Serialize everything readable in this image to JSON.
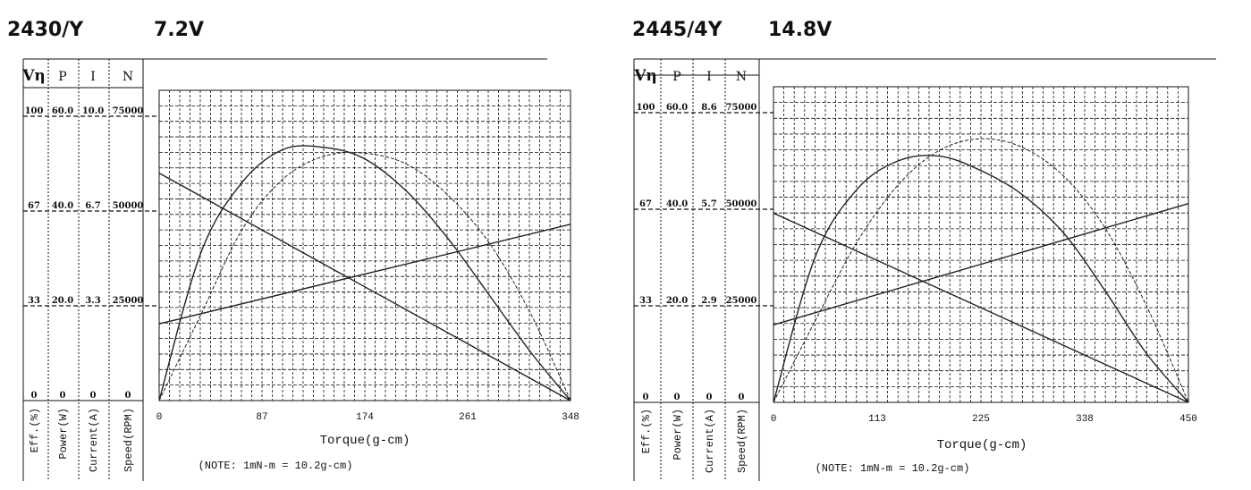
{
  "chart_data": [
    {
      "type": "line",
      "model": "2430/Y",
      "voltage": "7.2V",
      "title": "",
      "xlabel": "Torque(g-cm)",
      "note": "(NOTE: 1mN-m = 10.2g-cm)",
      "xlim": [
        0,
        348
      ],
      "x_ticks": [
        "0",
        "87",
        "174",
        "261",
        "348"
      ],
      "left_headers": [
        "Vη",
        "P",
        "I",
        "N"
      ],
      "left_scales": {
        "eff": [
          "0",
          "33",
          "67",
          "100"
        ],
        "power": [
          "0",
          "20.0",
          "40.0",
          "60.0"
        ],
        "current": [
          "0",
          "3.3",
          "6.7",
          "10.0"
        ],
        "speed": [
          "0",
          "25000",
          "50000",
          "75000"
        ]
      },
      "axis_names": [
        "Eff.(%)",
        "Power(W)",
        "Current(A)",
        "Speed(RPM)"
      ],
      "series": [
        {
          "role": "speed",
          "unit": "RPM",
          "style": "solid",
          "x": [
            0,
            348
          ],
          "values": [
            60000,
            0
          ]
        },
        {
          "role": "current",
          "unit": "A",
          "style": "solid",
          "x": [
            0,
            348
          ],
          "values": [
            2.7,
            6.2
          ]
        },
        {
          "role": "power",
          "unit": "W",
          "style": "solid",
          "x": [
            0,
            35,
            70,
            105,
            140,
            174,
            210,
            245,
            280,
            315,
            348
          ],
          "values": [
            0,
            31,
            46,
            53,
            53.4,
            51,
            44,
            34,
            22,
            10,
            0
          ]
        },
        {
          "role": "efficiency",
          "unit": "%",
          "style": "dashed",
          "x": [
            0,
            35,
            70,
            105,
            140,
            174,
            210,
            245,
            280,
            315,
            348
          ],
          "values": [
            0,
            30,
            60,
            78,
            86,
            87,
            83,
            72,
            55,
            30,
            0
          ]
        }
      ]
    },
    {
      "type": "line",
      "model": "2445/4Y",
      "voltage": "14.8V",
      "title": "",
      "xlabel": "Torque(g-cm)",
      "note": "(NOTE: 1mN-m = 10.2g-cm)",
      "xlim": [
        0,
        450
      ],
      "x_ticks": [
        "0",
        "113",
        "225",
        "338",
        "450"
      ],
      "left_headers": [
        "Vη",
        "P",
        "I",
        "N"
      ],
      "left_scales": {
        "eff": [
          "0",
          "33",
          "67",
          "100"
        ],
        "power": [
          "0",
          "20.0",
          "40.0",
          "60.0"
        ],
        "current": [
          "0",
          "2.9",
          "5.7",
          "8.6"
        ],
        "speed": [
          "0",
          "25000",
          "50000",
          "75000"
        ]
      },
      "axis_names": [
        "Eff.(%)",
        "Power(W)",
        "Current(A)",
        "Speed(RPM)"
      ],
      "series": [
        {
          "role": "speed",
          "unit": "RPM",
          "style": "solid",
          "x": [
            0,
            450
          ],
          "values": [
            49000,
            0
          ]
        },
        {
          "role": "current",
          "unit": "A",
          "style": "solid",
          "x": [
            0,
            450
          ],
          "values": [
            2.3,
            5.9
          ]
        },
        {
          "role": "power",
          "unit": "W",
          "style": "solid",
          "x": [
            0,
            45,
            90,
            135,
            180,
            225,
            270,
            315,
            360,
            405,
            450
          ],
          "values": [
            0,
            30,
            44,
            50,
            51,
            48,
            43,
            35,
            23,
            10,
            0
          ]
        },
        {
          "role": "efficiency",
          "unit": "%",
          "style": "dashed",
          "x": [
            0,
            45,
            90,
            135,
            180,
            225,
            270,
            315,
            360,
            405,
            450
          ],
          "values": [
            0,
            28,
            55,
            75,
            87,
            91,
            88,
            78,
            60,
            33,
            0
          ]
        }
      ]
    }
  ]
}
